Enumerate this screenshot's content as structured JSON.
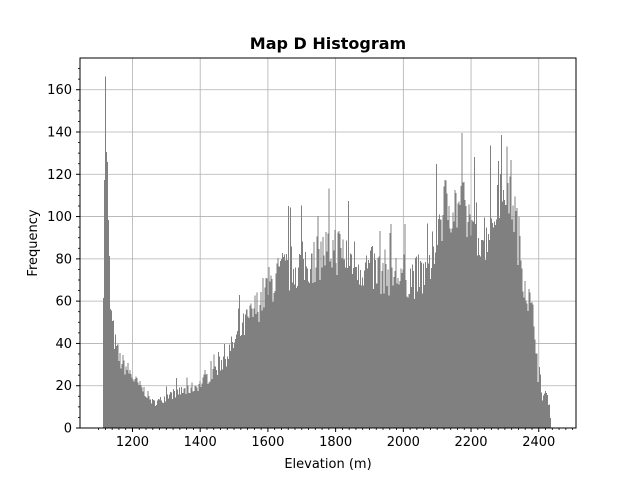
{
  "chart_data": {
    "type": "bar",
    "title": "Map D Histogram",
    "xlabel": "Elevation (m)",
    "ylabel": "Frequency",
    "xlim": [
      1045,
      2510
    ],
    "ylim": [
      0,
      175
    ],
    "xticks": [
      1200,
      1400,
      1600,
      1800,
      2000,
      2200,
      2400
    ],
    "yticks": [
      0,
      20,
      40,
      60,
      80,
      100,
      120,
      140,
      160
    ],
    "grid": true,
    "bar_color": "#808080",
    "bin_width": 3,
    "bins_start": 1113,
    "profile_x": [
      1113,
      1117,
      1120,
      1125,
      1130,
      1135,
      1140,
      1150,
      1160,
      1175,
      1190,
      1210,
      1240,
      1260,
      1280,
      1300,
      1330,
      1360,
      1400,
      1440,
      1480,
      1520,
      1560,
      1600,
      1640,
      1680,
      1720,
      1760,
      1780,
      1800,
      1840,
      1880,
      1920,
      1960,
      2000,
      2040,
      2080,
      2100,
      2120,
      2140,
      2160,
      2180,
      2200,
      2220,
      2240,
      2260,
      2280,
      2300,
      2320,
      2340,
      2360,
      2380,
      2390,
      2400,
      2410,
      2420,
      2430,
      2435
    ],
    "profile_y": [
      45,
      120,
      160,
      130,
      90,
      60,
      50,
      40,
      33,
      30,
      27,
      22,
      17,
      12,
      13,
      15,
      17,
      18,
      21,
      27,
      35,
      46,
      56,
      67,
      74,
      77,
      79,
      83,
      85,
      86,
      82,
      77,
      75,
      74,
      73,
      72,
      74,
      98,
      105,
      108,
      106,
      103,
      98,
      95,
      92,
      98,
      112,
      120,
      112,
      90,
      70,
      55,
      48,
      22,
      15,
      17,
      12,
      5
    ]
  }
}
